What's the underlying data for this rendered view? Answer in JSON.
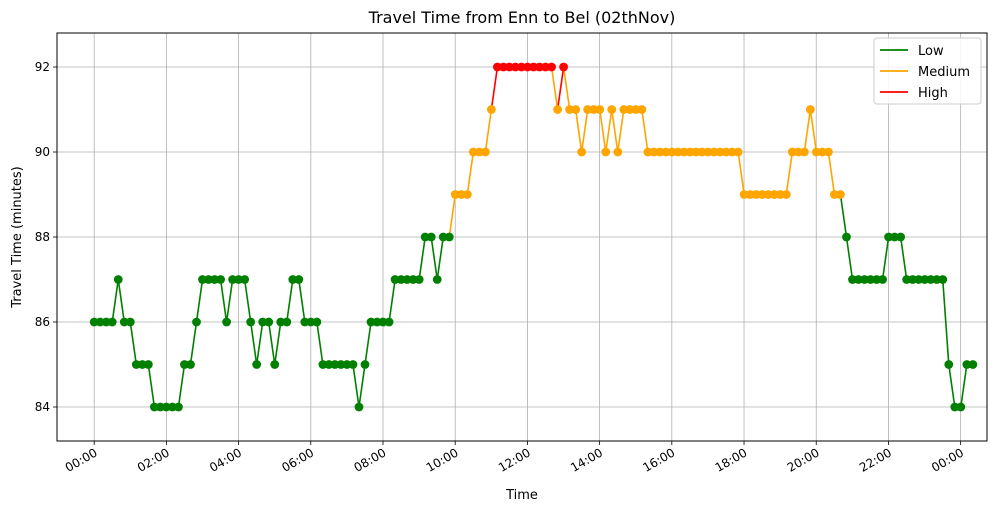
{
  "chart_data": {
    "type": "line",
    "title": "Travel Time from Enn to Bel (02thNov)",
    "xlabel": "Time",
    "ylabel": "Travel Time (minutes)",
    "xlim": [
      -1.03,
      24.73
    ],
    "ylim": [
      83.2,
      92.8
    ],
    "grid": true,
    "legend_position": "top-right",
    "x_ticks": [
      {
        "value": 0,
        "label": "00:00"
      },
      {
        "value": 2,
        "label": "02:00"
      },
      {
        "value": 4,
        "label": "04:00"
      },
      {
        "value": 6,
        "label": "06:00"
      },
      {
        "value": 8,
        "label": "08:00"
      },
      {
        "value": 10,
        "label": "10:00"
      },
      {
        "value": 12,
        "label": "12:00"
      },
      {
        "value": 14,
        "label": "14:00"
      },
      {
        "value": 16,
        "label": "16:00"
      },
      {
        "value": 18,
        "label": "18:00"
      },
      {
        "value": 20,
        "label": "20:00"
      },
      {
        "value": 22,
        "label": "22:00"
      },
      {
        "value": 24,
        "label": "00:00"
      }
    ],
    "y_ticks": [
      {
        "value": 84,
        "label": "84"
      },
      {
        "value": 86,
        "label": "86"
      },
      {
        "value": 88,
        "label": "88"
      },
      {
        "value": 90,
        "label": "90"
      },
      {
        "value": 92,
        "label": "92"
      }
    ],
    "series": [
      {
        "name": "Low",
        "color": "#008000"
      },
      {
        "name": "Medium",
        "color": "#ffa500"
      },
      {
        "name": "High",
        "color": "#ff0000"
      }
    ],
    "x_step_hours": 0.1667,
    "values": [
      86,
      86,
      86,
      86,
      87,
      86,
      86,
      85,
      85,
      85,
      84,
      84,
      84,
      84,
      84,
      85,
      85,
      86,
      87,
      87,
      87,
      87,
      86,
      87,
      87,
      87,
      86,
      85,
      86,
      86,
      85,
      86,
      86,
      87,
      87,
      86,
      86,
      86,
      85,
      85,
      85,
      85,
      85,
      85,
      84,
      85,
      86,
      86,
      86,
      86,
      87,
      87,
      87,
      87,
      87,
      88,
      88,
      87,
      88,
      88,
      89,
      89,
      89,
      90,
      90,
      90,
      91,
      92,
      92,
      92,
      92,
      92,
      92,
      92,
      92,
      92,
      92,
      91,
      92,
      91,
      91,
      90,
      91,
      91,
      91,
      90,
      91,
      90,
      91,
      91,
      91,
      91,
      90,
      90,
      90,
      90,
      90,
      90,
      90,
      90,
      90,
      90,
      90,
      90,
      90,
      90,
      90,
      90,
      89,
      89,
      89,
      89,
      89,
      89,
      89,
      89,
      90,
      90,
      90,
      91,
      90,
      90,
      90,
      89,
      89,
      88,
      87,
      87,
      87,
      87,
      87,
      87,
      88,
      88,
      88,
      87,
      87,
      87,
      87,
      87,
      87,
      87,
      85,
      84,
      84,
      85,
      85
    ],
    "levels": [
      "Low",
      "Low",
      "Low",
      "Low",
      "Low",
      "Low",
      "Low",
      "Low",
      "Low",
      "Low",
      "Low",
      "Low",
      "Low",
      "Low",
      "Low",
      "Low",
      "Low",
      "Low",
      "Low",
      "Low",
      "Low",
      "Low",
      "Low",
      "Low",
      "Low",
      "Low",
      "Low",
      "Low",
      "Low",
      "Low",
      "Low",
      "Low",
      "Low",
      "Low",
      "Low",
      "Low",
      "Low",
      "Low",
      "Low",
      "Low",
      "Low",
      "Low",
      "Low",
      "Low",
      "Low",
      "Low",
      "Low",
      "Low",
      "Low",
      "Low",
      "Low",
      "Low",
      "Low",
      "Low",
      "Low",
      "Low",
      "Low",
      "Low",
      "Low",
      "Low",
      "Medium",
      "Medium",
      "Medium",
      "Medium",
      "Medium",
      "Medium",
      "Medium",
      "High",
      "High",
      "High",
      "High",
      "High",
      "High",
      "High",
      "High",
      "High",
      "High",
      "Medium",
      "High",
      "Medium",
      "Medium",
      "Medium",
      "Medium",
      "Medium",
      "Medium",
      "Medium",
      "Medium",
      "Medium",
      "Medium",
      "Medium",
      "Medium",
      "Medium",
      "Medium",
      "Medium",
      "Medium",
      "Medium",
      "Medium",
      "Medium",
      "Medium",
      "Medium",
      "Medium",
      "Medium",
      "Medium",
      "Medium",
      "Medium",
      "Medium",
      "Medium",
      "Medium",
      "Medium",
      "Medium",
      "Medium",
      "Medium",
      "Medium",
      "Medium",
      "Medium",
      "Medium",
      "Medium",
      "Medium",
      "Medium",
      "Medium",
      "Medium",
      "Medium",
      "Medium",
      "Medium",
      "Medium",
      "Low",
      "Low",
      "Low",
      "Low",
      "Low",
      "Low",
      "Low",
      "Low",
      "Low",
      "Low",
      "Low",
      "Low",
      "Low",
      "Low",
      "Low",
      "Low",
      "Low",
      "Low",
      "Low",
      "Low",
      "Low",
      "Low"
    ]
  }
}
